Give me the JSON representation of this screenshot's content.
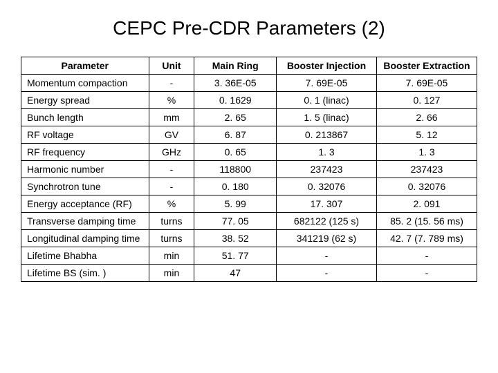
{
  "title": "CEPC Pre-CDR Parameters (2)",
  "table": {
    "columns": [
      "Parameter",
      "Unit",
      "Main Ring",
      "Booster Injection",
      "Booster Extraction"
    ],
    "rows": [
      [
        "Momentum compaction",
        "-",
        "3. 36E-05",
        "7. 69E-05",
        "7. 69E-05"
      ],
      [
        "Energy spread",
        "%",
        "0. 1629",
        "0. 1 (linac)",
        "0. 127"
      ],
      [
        "Bunch length",
        "mm",
        "2. 65",
        "1. 5 (linac)",
        "2. 66"
      ],
      [
        "RF voltage",
        "GV",
        "6. 87",
        "0. 213867",
        "5. 12"
      ],
      [
        "RF frequency",
        "GHz",
        "0. 65",
        "1. 3",
        "1. 3"
      ],
      [
        "Harmonic number",
        "-",
        "118800",
        "237423",
        "237423"
      ],
      [
        "Synchrotron tune",
        "-",
        "0. 180",
        "0. 32076",
        "0. 32076"
      ],
      [
        "Energy acceptance (RF)",
        "%",
        "5. 99",
        "17. 307",
        "2. 091"
      ],
      [
        "Transverse damping time",
        "turns",
        "77. 05",
        "682122 (125 s)",
        "85. 2 (15. 56 ms)"
      ],
      [
        "Longitudinal damping time",
        "turns",
        "38. 52",
        "341219 (62 s)",
        "42. 7 (7. 789 ms)"
      ],
      [
        "Lifetime Bhabha",
        "min",
        "51. 77",
        "-",
        "-"
      ],
      [
        "Lifetime BS (sim. )",
        "min",
        "47",
        "-",
        "-"
      ]
    ]
  },
  "style": {
    "title_fontsize": 28,
    "table_fontsize": 14,
    "border_color": "#000000",
    "background_color": "#ffffff",
    "text_color": "#000000"
  }
}
